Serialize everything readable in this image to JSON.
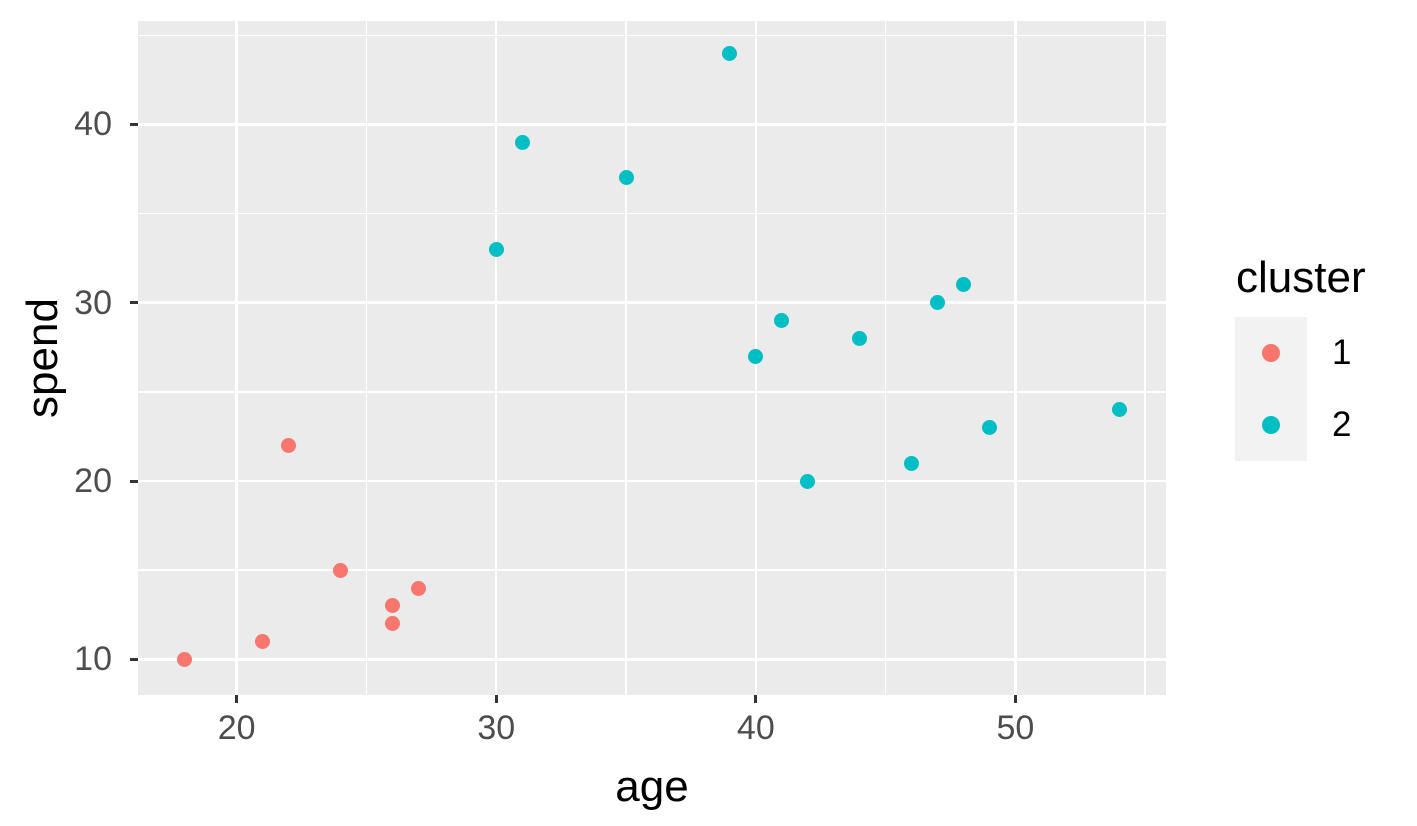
{
  "chart_data": {
    "type": "scatter",
    "title": "",
    "xlabel": "age",
    "ylabel": "spend",
    "xlim": [
      16.2,
      55.8
    ],
    "ylim": [
      8.0,
      45.8
    ],
    "x_ticks": [
      20,
      30,
      40,
      50
    ],
    "y_ticks": [
      10,
      20,
      30,
      40
    ],
    "x_minor_gridlines": [
      25,
      35,
      45,
      55
    ],
    "y_minor_gridlines": [
      15,
      25,
      35,
      45
    ],
    "grid": true,
    "legend": {
      "title": "cluster",
      "position": "right",
      "entries": [
        {
          "label": "1",
          "color": "#F8766D"
        },
        {
          "label": "2",
          "color": "#00BFC4"
        }
      ]
    },
    "series": [
      {
        "name": "1",
        "color": "#F8766D",
        "points": [
          [
            18,
            10
          ],
          [
            21,
            11
          ],
          [
            22,
            22
          ],
          [
            24,
            15
          ],
          [
            26,
            12
          ],
          [
            26,
            13
          ],
          [
            27,
            14
          ]
        ]
      },
      {
        "name": "2",
        "color": "#00BFC4",
        "points": [
          [
            30,
            33
          ],
          [
            31,
            39
          ],
          [
            35,
            37
          ],
          [
            39,
            44
          ],
          [
            40,
            27
          ],
          [
            41,
            29
          ],
          [
            42,
            20
          ],
          [
            44,
            28
          ],
          [
            46,
            21
          ],
          [
            47,
            30
          ],
          [
            48,
            31
          ],
          [
            49,
            23
          ],
          [
            54,
            24
          ]
        ]
      }
    ]
  },
  "theme": {
    "background": "#FFFFFF",
    "panel_background": "#EBEBEB",
    "grid_color": "#FFFFFF",
    "tick_mark_color": "#333333",
    "tick_label_color": "#4D4D4D",
    "axis_title_color": "#000000",
    "legend_key_background": "#F2F2F2"
  }
}
